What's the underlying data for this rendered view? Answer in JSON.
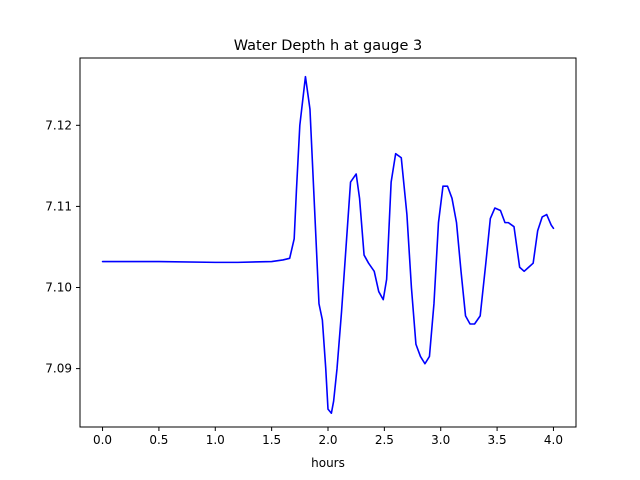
{
  "chart_data": {
    "type": "line",
    "title": "Water Depth h at gauge 3",
    "xlabel": "hours",
    "ylabel": "",
    "xlim": [
      -0.2,
      4.2
    ],
    "ylim": [
      7.0828,
      7.1283
    ],
    "x_ticks": [
      0.0,
      0.5,
      1.0,
      1.5,
      2.0,
      2.5,
      3.0,
      3.5,
      4.0
    ],
    "x_tick_labels": [
      "0.0",
      "0.5",
      "1.0",
      "1.5",
      "2.0",
      "2.5",
      "3.0",
      "3.5",
      "4.0"
    ],
    "y_ticks": [
      7.09,
      7.1,
      7.11,
      7.12
    ],
    "y_tick_labels": [
      "7.09",
      "7.10",
      "7.11",
      "7.12"
    ],
    "grid": false,
    "colors": {
      "line": "#0000ff",
      "axes": "#000000",
      "background": "#ffffff"
    },
    "series": [
      {
        "x": [
          0.0,
          0.5,
          1.0,
          1.2,
          1.5,
          1.6,
          1.66,
          1.7,
          1.72,
          1.75,
          1.8,
          1.84,
          1.88,
          1.92,
          1.95,
          1.98,
          2.0,
          2.03,
          2.05,
          2.08,
          2.12,
          2.16,
          2.2,
          2.25,
          2.28,
          2.32,
          2.36,
          2.41,
          2.45,
          2.49,
          2.52,
          2.56,
          2.6,
          2.65,
          2.7,
          2.74,
          2.78,
          2.82,
          2.86,
          2.9,
          2.94,
          2.98,
          3.02,
          3.06,
          3.1,
          3.14,
          3.18,
          3.22,
          3.26,
          3.3,
          3.35,
          3.4,
          3.44,
          3.48,
          3.53,
          3.57,
          3.6,
          3.65,
          3.7,
          3.74,
          3.78,
          3.82,
          3.86,
          3.9,
          3.94,
          3.98,
          4.0
        ],
        "y": [
          7.1032,
          7.1032,
          7.1031,
          7.1031,
          7.1032,
          7.1034,
          7.1036,
          7.106,
          7.112,
          7.12,
          7.126,
          7.122,
          7.11,
          7.098,
          7.096,
          7.09,
          7.085,
          7.0845,
          7.086,
          7.09,
          7.097,
          7.105,
          7.113,
          7.114,
          7.111,
          7.104,
          7.103,
          7.102,
          7.0995,
          7.0985,
          7.101,
          7.113,
          7.1165,
          7.116,
          7.109,
          7.1,
          7.093,
          7.0915,
          7.0906,
          7.0915,
          7.098,
          7.108,
          7.1125,
          7.1125,
          7.111,
          7.108,
          7.102,
          7.0965,
          7.0955,
          7.0955,
          7.0965,
          7.103,
          7.1085,
          7.1098,
          7.1095,
          7.108,
          7.108,
          7.1075,
          7.1025,
          7.102,
          7.1025,
          7.103,
          7.107,
          7.1087,
          7.109,
          7.1077,
          7.1073
        ]
      }
    ]
  }
}
